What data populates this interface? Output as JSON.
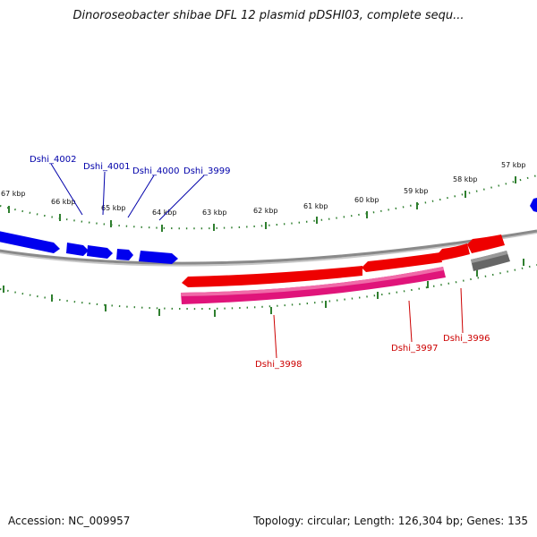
{
  "title": "Dinoroseobacter shibae DFL 12 plasmid pDSHI03, complete sequ...",
  "footer": {
    "accession": "Accession: NC_009957",
    "summary": "Topology: circular; Length: 126,304 bp; Genes: 135"
  },
  "colors": {
    "backbone": "#8a8a8a",
    "tick": "#2f7f2f",
    "forward_gene": "#0000ee",
    "reverse_gene": "#ee0000",
    "rna_gene": "#e0147a",
    "other_feature": "#666666",
    "forward_label": "#0000aa",
    "reverse_label": "#cc0000"
  },
  "ticks": {
    "unit": "kbp",
    "labels": [
      "57 kbp",
      "58 kbp",
      "59 kbp",
      "60 kbp",
      "61 kbp",
      "62 kbp",
      "63 kbp",
      "64 kbp",
      "65 kbp",
      "66 kbp",
      "67 kbp"
    ]
  },
  "genes": {
    "forward": [
      {
        "id": "blue-0",
        "label": ""
      },
      {
        "id": "blue-1",
        "label": ""
      },
      {
        "id": "blue-2",
        "label": ""
      },
      {
        "id": "blue-3",
        "label": ""
      },
      {
        "id": "blue-4",
        "label": ""
      },
      {
        "id": "blue-5",
        "label": ""
      }
    ],
    "forward_labels": [
      "Dshi_4002",
      "Dshi_4001",
      "Dshi_4000",
      "Dshi_3999"
    ],
    "reverse_labels": [
      "Dshi_3998",
      "Dshi_3997",
      "Dshi_3996"
    ],
    "feature_types": [
      "forward-gene",
      "reverse-gene",
      "rna-gene",
      "other-feature"
    ]
  }
}
